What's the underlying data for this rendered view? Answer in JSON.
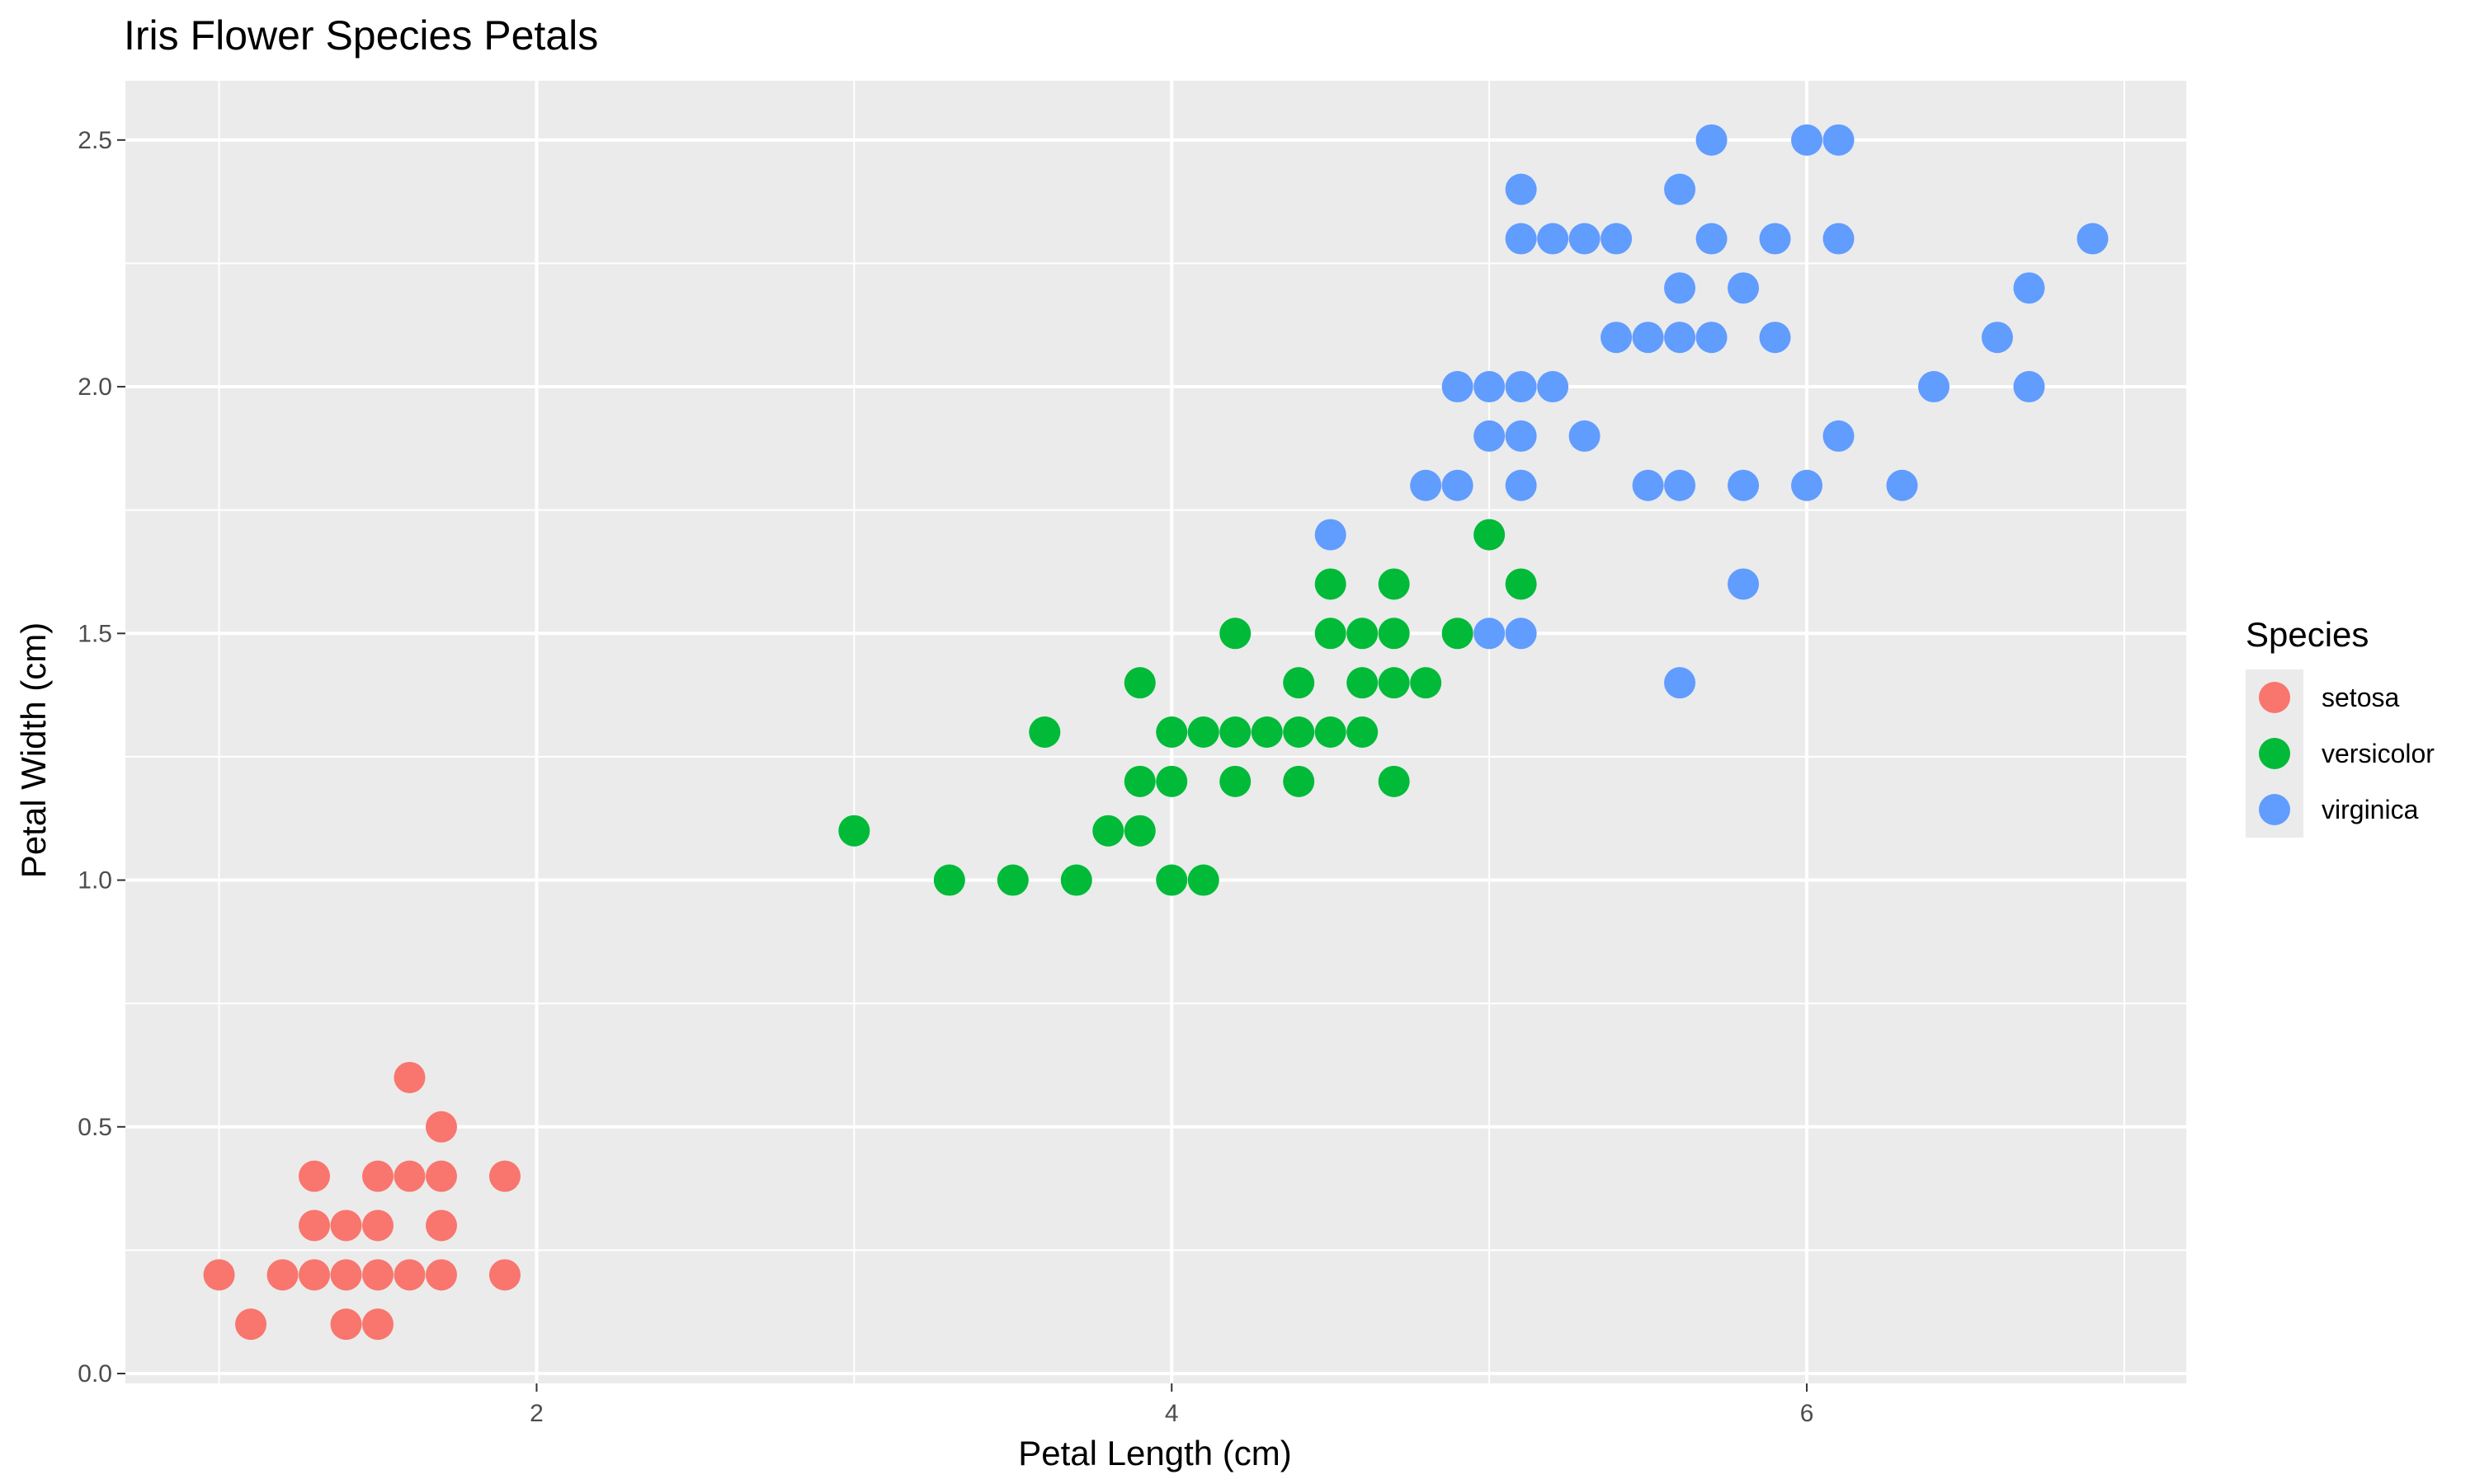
{
  "chart_data": {
    "type": "scatter",
    "title": "Iris Flower Species Petals",
    "xlabel": "Petal Length (cm)",
    "ylabel": "Petal Width (cm)",
    "xlim": [
      0.705,
      7.195
    ],
    "ylim": [
      -0.02,
      2.62
    ],
    "x_ticks": [
      2,
      4,
      6
    ],
    "x_tick_labels": [
      "2",
      "4",
      "6"
    ],
    "y_ticks": [
      0,
      0.5,
      1,
      1.5,
      2,
      2.5
    ],
    "y_tick_labels": [
      "0.0",
      "0.5",
      "1.0",
      "1.5",
      "2.0",
      "2.5"
    ],
    "grid": true,
    "legend": {
      "title": "Species",
      "position": "right"
    },
    "colors": {
      "panel": "#EBEBEB",
      "grid": "#FFFFFF"
    },
    "series": [
      {
        "name": "setosa",
        "color": "#F8766D",
        "points": [
          [
            1.0,
            0.2
          ],
          [
            1.1,
            0.1
          ],
          [
            1.2,
            0.2
          ],
          [
            1.3,
            0.2
          ],
          [
            1.3,
            0.3
          ],
          [
            1.3,
            0.4
          ],
          [
            1.4,
            0.1
          ],
          [
            1.4,
            0.2
          ],
          [
            1.4,
            0.3
          ],
          [
            1.5,
            0.1
          ],
          [
            1.5,
            0.2
          ],
          [
            1.5,
            0.3
          ],
          [
            1.5,
            0.4
          ],
          [
            1.6,
            0.2
          ],
          [
            1.6,
            0.4
          ],
          [
            1.6,
            0.6
          ],
          [
            1.7,
            0.2
          ],
          [
            1.7,
            0.3
          ],
          [
            1.7,
            0.4
          ],
          [
            1.7,
            0.5
          ],
          [
            1.9,
            0.2
          ],
          [
            1.9,
            0.4
          ]
        ]
      },
      {
        "name": "versicolor",
        "color": "#00BA38",
        "points": [
          [
            3.0,
            1.1
          ],
          [
            3.3,
            1.0
          ],
          [
            3.5,
            1.0
          ],
          [
            3.6,
            1.3
          ],
          [
            3.7,
            1.0
          ],
          [
            3.8,
            1.1
          ],
          [
            3.9,
            1.1
          ],
          [
            3.9,
            1.2
          ],
          [
            3.9,
            1.4
          ],
          [
            4.0,
            1.0
          ],
          [
            4.0,
            1.2
          ],
          [
            4.0,
            1.3
          ],
          [
            4.1,
            1.0
          ],
          [
            4.1,
            1.3
          ],
          [
            4.2,
            1.2
          ],
          [
            4.2,
            1.3
          ],
          [
            4.2,
            1.5
          ],
          [
            4.3,
            1.3
          ],
          [
            4.4,
            1.2
          ],
          [
            4.4,
            1.3
          ],
          [
            4.4,
            1.4
          ],
          [
            4.5,
            1.3
          ],
          [
            4.5,
            1.5
          ],
          [
            4.5,
            1.6
          ],
          [
            4.6,
            1.3
          ],
          [
            4.6,
            1.4
          ],
          [
            4.6,
            1.5
          ],
          [
            4.7,
            1.2
          ],
          [
            4.7,
            1.4
          ],
          [
            4.7,
            1.5
          ],
          [
            4.7,
            1.6
          ],
          [
            4.8,
            1.4
          ],
          [
            4.9,
            1.5
          ],
          [
            5.0,
            1.7
          ],
          [
            5.1,
            1.6
          ]
        ]
      },
      {
        "name": "virginica",
        "color": "#619CFF",
        "points": [
          [
            4.5,
            1.7
          ],
          [
            4.8,
            1.8
          ],
          [
            4.9,
            1.8
          ],
          [
            4.9,
            2.0
          ],
          [
            5.0,
            1.5
          ],
          [
            5.0,
            1.9
          ],
          [
            5.0,
            2.0
          ],
          [
            5.1,
            1.5
          ],
          [
            5.1,
            1.8
          ],
          [
            5.1,
            1.9
          ],
          [
            5.1,
            2.0
          ],
          [
            5.1,
            2.3
          ],
          [
            5.1,
            2.4
          ],
          [
            5.2,
            2.0
          ],
          [
            5.2,
            2.3
          ],
          [
            5.3,
            1.9
          ],
          [
            5.3,
            2.3
          ],
          [
            5.4,
            2.1
          ],
          [
            5.4,
            2.3
          ],
          [
            5.5,
            1.8
          ],
          [
            5.5,
            2.1
          ],
          [
            5.6,
            1.4
          ],
          [
            5.6,
            1.8
          ],
          [
            5.6,
            2.1
          ],
          [
            5.6,
            2.2
          ],
          [
            5.6,
            2.4
          ],
          [
            5.7,
            2.1
          ],
          [
            5.7,
            2.3
          ],
          [
            5.7,
            2.5
          ],
          [
            5.8,
            1.6
          ],
          [
            5.8,
            1.8
          ],
          [
            5.8,
            2.2
          ],
          [
            5.9,
            2.1
          ],
          [
            5.9,
            2.3
          ],
          [
            6.0,
            1.8
          ],
          [
            6.0,
            2.5
          ],
          [
            6.1,
            1.9
          ],
          [
            6.1,
            2.3
          ],
          [
            6.1,
            2.5
          ],
          [
            6.3,
            1.8
          ],
          [
            6.4,
            2.0
          ],
          [
            6.6,
            2.1
          ],
          [
            6.7,
            2.0
          ],
          [
            6.7,
            2.2
          ],
          [
            6.9,
            2.3
          ]
        ]
      }
    ]
  }
}
